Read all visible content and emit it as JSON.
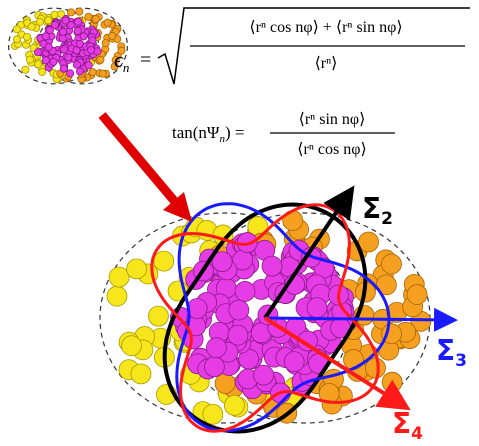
{
  "formulas": {
    "eccentricity": {
      "symbol": "ϵ",
      "subscript": "n",
      "equals": "=",
      "numerator": "⟨rⁿ cos nφ⟩ + ⟨rⁿ sin nφ⟩",
      "denominator": "⟨rⁿ⟩"
    },
    "angle": {
      "lhs": "tan(nΨ",
      "subscript": "n",
      "rhs": ") =",
      "numerator": "⟨rⁿ sin nφ⟩",
      "denominator": "⟨rⁿ cos nφ⟩"
    }
  },
  "labels": [
    {
      "symbol": "Σ",
      "subscript": "2"
    },
    {
      "symbol": "Σ",
      "subscript": "3"
    },
    {
      "symbol": "Σ",
      "subscript": "4"
    }
  ]
}
